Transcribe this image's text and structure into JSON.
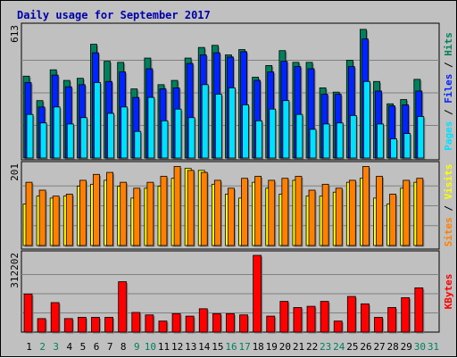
{
  "chart_data": {
    "type": "bar",
    "title": "Daily usage for September 2017",
    "x": [
      "1",
      "2",
      "3",
      "4",
      "5",
      "6",
      "7",
      "8",
      "9",
      "10",
      "11",
      "12",
      "13",
      "14",
      "15",
      "16",
      "17",
      "18",
      "19",
      "20",
      "21",
      "22",
      "23",
      "24",
      "25",
      "26",
      "27",
      "28",
      "29",
      "30",
      "31"
    ],
    "weekend_days": [
      "2",
      "3",
      "9",
      "10",
      "16",
      "17",
      "23",
      "24",
      "30",
      "31"
    ],
    "colors": {
      "hits": "#00805c",
      "files": "#0024ff",
      "pages": "#00e0ff",
      "visits": "#ffff00",
      "sites": "#ff8000",
      "kbytes": "#ff0000",
      "weekday_tick": "#000000",
      "weekend_tick": "#00805c"
    },
    "panels": [
      {
        "id": "hits-files-pages",
        "max_label": "613",
        "ymax": 613,
        "right_labels": [
          {
            "text": "Pages",
            "color": "#00e0ff"
          },
          {
            "text": " / ",
            "color": "#000000"
          },
          {
            "text": "Files",
            "color": "#0024ff"
          },
          {
            "text": " / ",
            "color": "#000000"
          },
          {
            "text": "Hits",
            "color": "#00805c"
          }
        ],
        "series": [
          {
            "name": "Hits",
            "values": [
              385,
              270,
              415,
              365,
              375,
              535,
              455,
              450,
              325,
              470,
              345,
              365,
              470,
              520,
              530,
              485,
              510,
              380,
              435,
              505,
              450,
              450,
              330,
              310,
              460,
              605,
              360,
              255,
              275,
              370,
              null
            ]
          },
          {
            "name": "Files",
            "values": [
              355,
              240,
              390,
              335,
              345,
              495,
              360,
              405,
              285,
              420,
              325,
              330,
              445,
              485,
              495,
              475,
              500,
              365,
              405,
              455,
              430,
              420,
              300,
              300,
              430,
              560,
              315,
              245,
              250,
              315,
              null
            ]
          },
          {
            "name": "Pages",
            "values": [
              205,
              165,
              240,
              160,
              190,
              355,
              210,
              240,
              125,
              285,
              175,
              230,
              190,
              345,
              300,
              330,
              250,
              175,
              230,
              270,
              205,
              135,
              160,
              165,
              200,
              360,
              160,
              90,
              115,
              195,
              null
            ]
          }
        ]
      },
      {
        "id": "visits-sites",
        "max_label": "201",
        "ymax": 201,
        "right_labels": [
          {
            "text": "Sites",
            "color": "#ff8000"
          },
          {
            "text": " / ",
            "color": "#000000"
          },
          {
            "text": "Visits",
            "color": "#ffff00"
          }
        ],
        "series": [
          {
            "name": "Visits",
            "values": [
              105,
              125,
              120,
              125,
              150,
              155,
              165,
              150,
              120,
              145,
              150,
              170,
              195,
              190,
              155,
              130,
              120,
              160,
              145,
              130,
              165,
              125,
              125,
              135,
              160,
              170,
              120,
              105,
              145,
              160,
              null
            ]
          },
          {
            "name": "Sites",
            "values": [
              160,
              140,
              125,
              130,
              165,
              180,
              185,
              160,
              145,
              160,
              175,
              200,
              190,
              185,
              165,
              145,
              170,
              175,
              165,
              170,
              175,
              140,
              155,
              145,
              165,
              200,
              175,
              130,
              165,
              170,
              null
            ]
          }
        ]
      },
      {
        "id": "kbytes",
        "max_label": "312202",
        "ymax": 312202,
        "right_labels": [
          {
            "text": "KBytes",
            "color": "#ff0000"
          }
        ],
        "series": [
          {
            "name": "KBytes",
            "values": [
              155000,
              55000,
              120000,
              55000,
              60000,
              60000,
              60000,
              205000,
              80000,
              70000,
              45000,
              75000,
              65000,
              95000,
              75000,
              75000,
              70000,
              312202,
              65000,
              125000,
              100000,
              105000,
              125000,
              45000,
              145000,
              115000,
              60000,
              100000,
              140000,
              180000,
              null
            ]
          }
        ]
      }
    ]
  }
}
